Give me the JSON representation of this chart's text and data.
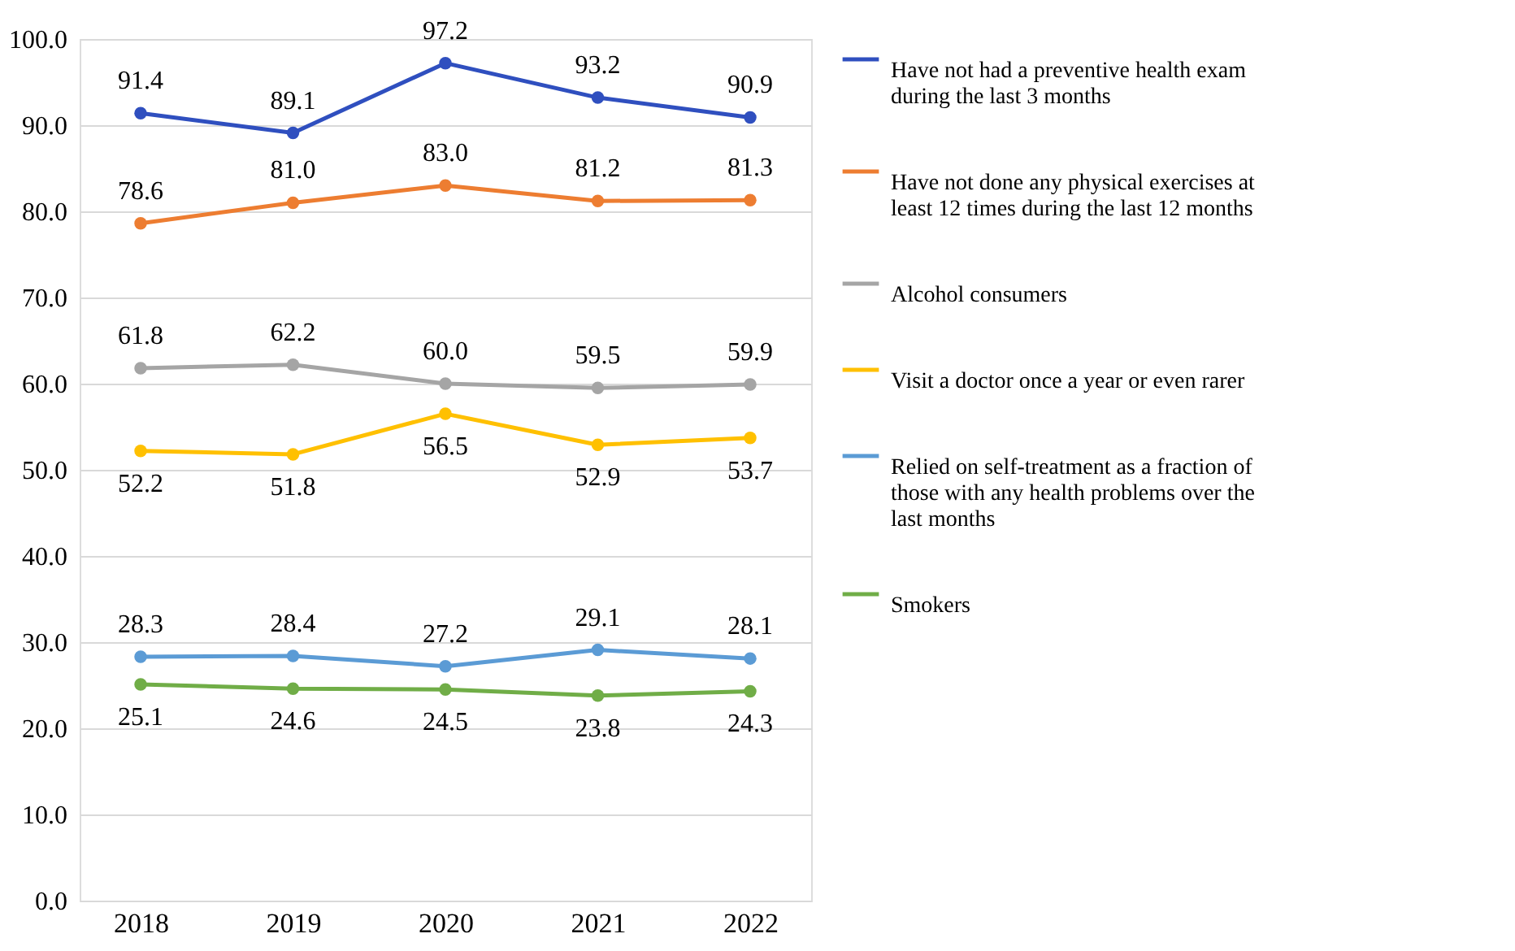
{
  "chart_data": {
    "type": "line",
    "categories": [
      "2018",
      "2019",
      "2020",
      "2021",
      "2022"
    ],
    "series": [
      {
        "name": "Have not had a preventive health exam during the last 3 months",
        "color": "#2f4fbf",
        "values": [
          91.4,
          89.1,
          97.2,
          93.2,
          90.9
        ],
        "value_labels": [
          "91.4",
          "89.1",
          "97.2",
          "93.2",
          "90.9"
        ]
      },
      {
        "name": "Have not done any physical exercises at least 12 times during the last 12 months",
        "color": "#ed7d31",
        "values": [
          78.6,
          81.0,
          83.0,
          81.2,
          81.3
        ],
        "value_labels": [
          "78.6",
          "81.0",
          "83.0",
          "81.2",
          "81.3"
        ]
      },
      {
        "name": "Alcohol consumers",
        "color": "#a5a5a5",
        "values": [
          61.8,
          62.2,
          60.0,
          59.5,
          59.9
        ],
        "value_labels": [
          "61.8",
          "62.2",
          "60.0",
          "59.5",
          "59.9"
        ]
      },
      {
        "name": "Visit a doctor once a year or even rarer",
        "color": "#ffc000",
        "values": [
          52.2,
          51.8,
          56.5,
          52.9,
          53.7
        ],
        "value_labels": [
          "52.2",
          "51.8",
          "56.5",
          "52.9",
          "53.7"
        ]
      },
      {
        "name": "Relied on self-treatment as a fraction of those with any health problems over the last months",
        "color": "#5b9bd5",
        "values": [
          28.3,
          28.4,
          27.2,
          29.1,
          28.1
        ],
        "value_labels": [
          "28.3",
          "28.4",
          "27.2",
          "29.1",
          "28.1"
        ]
      },
      {
        "name": "Smokers",
        "color": "#70ad47",
        "values": [
          25.1,
          24.6,
          24.5,
          23.8,
          24.3
        ],
        "value_labels": [
          "25.1",
          "24.6",
          "24.5",
          "23.8",
          "24.3"
        ]
      }
    ],
    "ylim": [
      0,
      100
    ],
    "yticks": [
      {
        "value": 0,
        "label": "0.0"
      },
      {
        "value": 10,
        "label": "10.0"
      },
      {
        "value": 20,
        "label": "20.0"
      },
      {
        "value": 30,
        "label": "30.0"
      },
      {
        "value": 40,
        "label": "40.0"
      },
      {
        "value": 50,
        "label": "50.0"
      },
      {
        "value": 60,
        "label": "60.0"
      },
      {
        "value": 70,
        "label": "70.0"
      },
      {
        "value": 80,
        "label": "80.0"
      },
      {
        "value": 90,
        "label": "90.0"
      },
      {
        "value": 100,
        "label": "100.0"
      }
    ],
    "grid": "y",
    "legend": "right",
    "marker": "circle",
    "line_style": "solid"
  }
}
